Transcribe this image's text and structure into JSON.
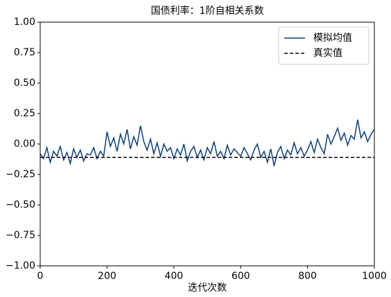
{
  "chart_data": {
    "type": "line",
    "title": "国债利率：1阶自相关系数",
    "xlabel": "迭代次数",
    "xlim": [
      0,
      1000
    ],
    "xticks": [
      0,
      200,
      400,
      600,
      800,
      1000
    ],
    "ylim": [
      -1,
      1
    ],
    "yticks": [
      {
        "value": -1,
        "label": "−1.00"
      },
      {
        "value": -0.75,
        "label": "−0.75"
      },
      {
        "value": -0.5,
        "label": "−0.50"
      },
      {
        "value": -0.25,
        "label": "−0.25"
      },
      {
        "value": 0,
        "label": "0.00"
      },
      {
        "value": 0.25,
        "label": "0.25"
      },
      {
        "value": 0.5,
        "label": "0.50"
      },
      {
        "value": 0.75,
        "label": "0.75"
      },
      {
        "value": 1,
        "label": "1.00"
      }
    ],
    "legend": "upper right",
    "series": [
      {
        "name": "模拟均值",
        "color": "#083d7f",
        "style": "solid",
        "x": [
          0,
          10,
          20,
          30,
          40,
          50,
          60,
          70,
          80,
          90,
          100,
          110,
          120,
          130,
          140,
          150,
          160,
          170,
          180,
          190,
          200,
          210,
          220,
          230,
          240,
          250,
          260,
          270,
          280,
          290,
          300,
          310,
          320,
          330,
          340,
          350,
          360,
          370,
          380,
          390,
          400,
          410,
          420,
          430,
          440,
          450,
          460,
          470,
          480,
          490,
          500,
          510,
          520,
          530,
          540,
          550,
          560,
          570,
          580,
          590,
          600,
          610,
          620,
          630,
          640,
          650,
          660,
          670,
          680,
          690,
          700,
          710,
          720,
          730,
          740,
          750,
          760,
          770,
          780,
          790,
          800,
          810,
          820,
          830,
          840,
          850,
          860,
          870,
          880,
          890,
          900,
          910,
          920,
          930,
          940,
          950,
          960,
          970,
          980,
          990,
          1000
        ],
        "values": [
          -0.08,
          -0.12,
          -0.03,
          -0.15,
          -0.06,
          -0.1,
          -0.02,
          -0.13,
          -0.07,
          -0.16,
          -0.04,
          -0.11,
          -0.05,
          -0.14,
          -0.08,
          -0.09,
          -0.03,
          -0.12,
          -0.06,
          -0.1,
          0.1,
          -0.02,
          0.05,
          -0.06,
          0.08,
          0.0,
          0.12,
          -0.04,
          0.06,
          -0.01,
          0.15,
          0.02,
          -0.05,
          0.04,
          -0.08,
          0.01,
          -0.1,
          0.0,
          -0.06,
          -0.03,
          -0.12,
          -0.04,
          -0.09,
          0.0,
          -0.14,
          -0.06,
          -0.02,
          -0.11,
          -0.05,
          -0.13,
          -0.03,
          -0.08,
          0.02,
          -0.1,
          -0.06,
          -0.12,
          -0.01,
          -0.09,
          -0.04,
          -0.07,
          -0.1,
          -0.03,
          -0.08,
          -0.13,
          -0.05,
          0.0,
          -0.11,
          -0.06,
          -0.15,
          -0.04,
          -0.18,
          -0.07,
          -0.02,
          -0.12,
          -0.05,
          -0.09,
          0.01,
          -0.08,
          -0.03,
          -0.1,
          -0.05,
          0.02,
          -0.07,
          0.04,
          -0.03,
          -0.08,
          0.08,
          0.0,
          0.06,
          0.13,
          0.03,
          0.09,
          -0.01,
          0.07,
          0.04,
          0.2,
          0.05,
          0.1,
          0.02,
          0.08,
          0.12
        ]
      },
      {
        "name": "真实值",
        "color": "#000000",
        "style": "dashed",
        "x": [
          0,
          1000
        ],
        "values": [
          -0.11,
          -0.11
        ]
      }
    ]
  }
}
